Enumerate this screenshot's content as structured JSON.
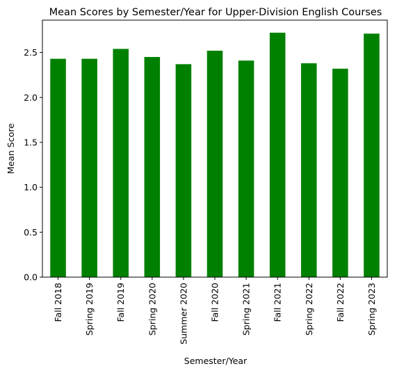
{
  "chart_data": {
    "type": "bar",
    "title": "Mean Scores by Semester/Year for Upper-Division English Courses",
    "xlabel": "Semester/Year",
    "ylabel": "Mean Score",
    "categories": [
      "Fall 2018",
      "Spring 2019",
      "Fall 2019",
      "Spring 2020",
      "Summer 2020",
      "Fall 2020",
      "Spring 2021",
      "Fall 2021",
      "Spring 2022",
      "Fall 2022",
      "Spring 2023"
    ],
    "values": [
      2.43,
      2.43,
      2.54,
      2.45,
      2.37,
      2.52,
      2.41,
      2.72,
      2.38,
      2.32,
      2.71
    ],
    "ylim": [
      0,
      2.86
    ],
    "yticks": [
      "0.0",
      "0.5",
      "1.0",
      "1.5",
      "2.0",
      "2.5"
    ],
    "bar_color": "#008000",
    "grid": false,
    "legend": "none"
  }
}
